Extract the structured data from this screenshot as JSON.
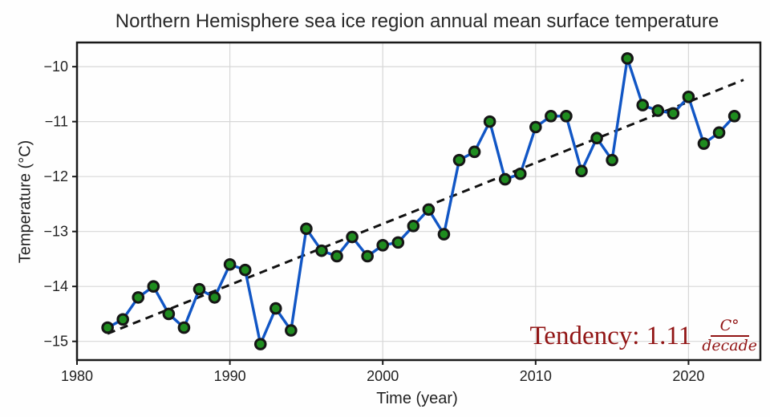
{
  "chart_data": {
    "type": "line",
    "title": "Northern Hemisphere sea ice region annual mean surface temperature",
    "xlabel": "Time (year)",
    "ylabel": "Temperature (°C)",
    "grid": true,
    "legend": "none",
    "xlim": [
      1980.0,
      2024.7
    ],
    "ylim": [
      -15.34,
      -9.56
    ],
    "xticks": [
      1980,
      1990,
      2000,
      2010,
      2020
    ],
    "yticks": [
      -10,
      -11,
      -12,
      -13,
      -14,
      -15
    ],
    "x": [
      1982,
      1983,
      1984,
      1985,
      1986,
      1987,
      1988,
      1989,
      1990,
      1991,
      1992,
      1993,
      1994,
      1995,
      1996,
      1997,
      1998,
      1999,
      2000,
      2001,
      2002,
      2003,
      2004,
      2005,
      2006,
      2007,
      2008,
      2009,
      2010,
      2011,
      2012,
      2013,
      2014,
      2015,
      2016,
      2017,
      2018,
      2019,
      2020,
      2021,
      2022,
      2023
    ],
    "values": [
      -14.75,
      -14.6,
      -14.2,
      -14.0,
      -14.5,
      -14.75,
      -14.05,
      -14.2,
      -13.6,
      -13.7,
      -15.05,
      -14.4,
      -14.8,
      -12.95,
      -13.35,
      -13.45,
      -13.1,
      -13.45,
      -13.25,
      -13.2,
      -12.9,
      -12.6,
      -13.05,
      -11.7,
      -11.55,
      -11.0,
      -12.05,
      -11.95,
      -11.1,
      -10.9,
      -10.9,
      -11.9,
      -11.3,
      -11.7,
      -9.85,
      -10.7,
      -10.8,
      -10.85,
      -10.55,
      -11.4,
      -11.2,
      -10.9
    ],
    "trend": {
      "style": "dashed",
      "x_start": 1982.0,
      "y_start": -14.86,
      "x_end": 2023.6,
      "y_end": -10.24,
      "slope_c_per_decade": 1.11
    },
    "annotation": {
      "text": "Tendency: 1.11",
      "fraction_numerator": "C°",
      "fraction_denominator": "decade",
      "color": "#911414"
    },
    "colors": {
      "line": "#1156c5",
      "marker_fill": "#1f8c1f",
      "marker_edge": "#161616",
      "trend": "#111111",
      "grid": "#d7d7d7",
      "spine": "#1a1a1a",
      "tick_text": "#1f1f1f"
    }
  }
}
